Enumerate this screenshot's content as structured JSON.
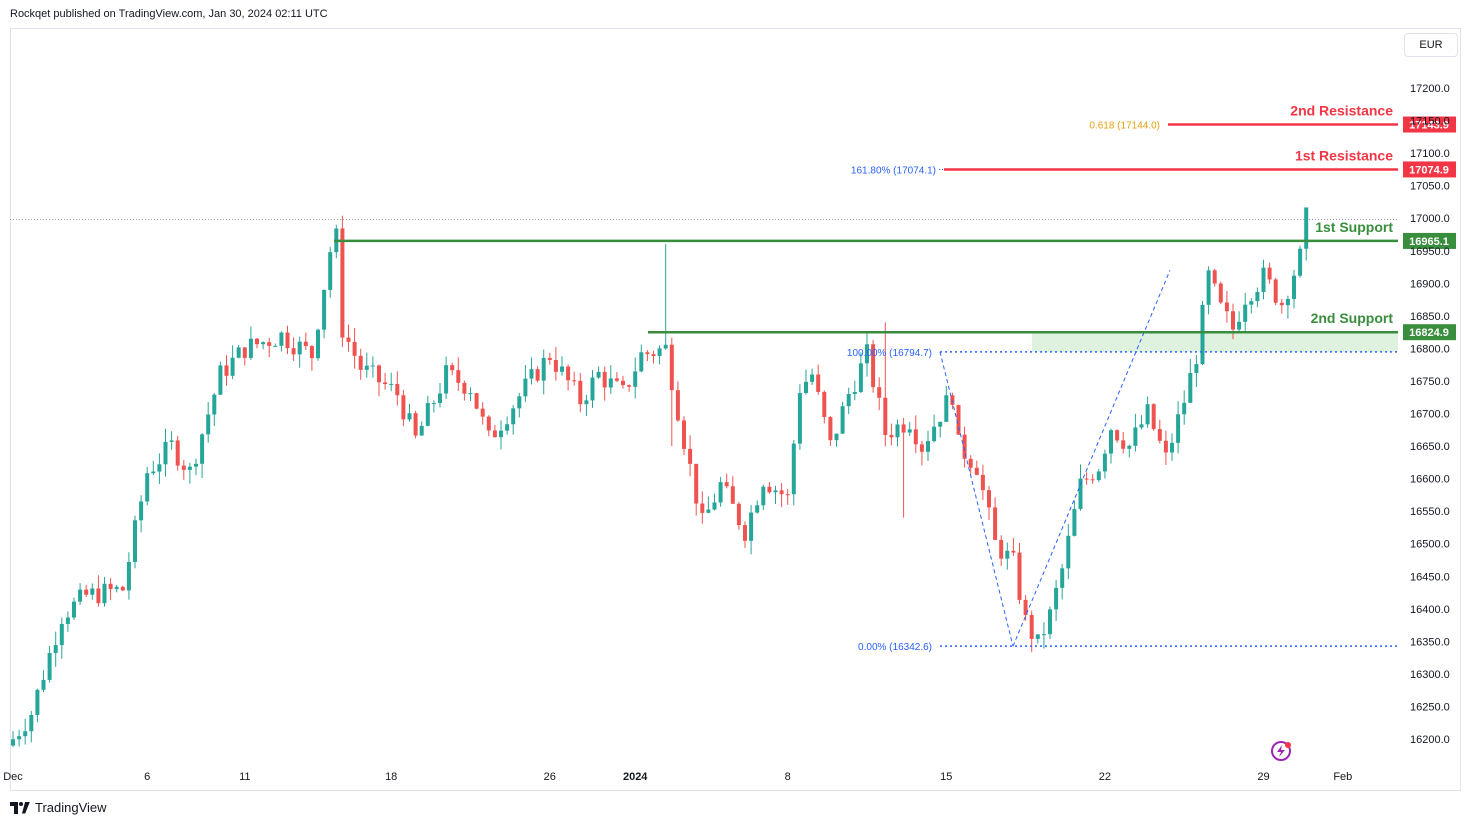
{
  "header": {
    "publisher_line": "Rockqet published on TradingView.com, Jan 30, 2024 02:11 UTC"
  },
  "currency": "EUR",
  "footer": {
    "brand": "TradingView",
    "logo_icon": "tradingview-logo-icon",
    "flash_icon": "lightning-icon"
  },
  "colors": {
    "up": "#26a69a",
    "down": "#ef5350",
    "support": "#388e3c",
    "resistance": "#f23645",
    "fib": "#2962ff",
    "gold": "#e5a00d"
  },
  "chart_data": {
    "type": "candlestick",
    "title": "",
    "ylim": [
      16160,
      17240
    ],
    "y_ticks": [
      "17200.0",
      "17150.0",
      "17100.0",
      "17050.0",
      "17000.0",
      "16950.0",
      "16900.0",
      "16850.0",
      "16800.0",
      "16750.0",
      "16700.0",
      "16650.0",
      "16600.0",
      "16550.0",
      "16500.0",
      "16450.0",
      "16400.0",
      "16350.0",
      "16300.0",
      "16250.0",
      "16200.0"
    ],
    "x_ticks": [
      {
        "label": "Dec",
        "bar": 0,
        "bold": false
      },
      {
        "label": "6",
        "bar": 22,
        "bold": false
      },
      {
        "label": "11",
        "bar": 38,
        "bold": false
      },
      {
        "label": "18",
        "bar": 62,
        "bold": false
      },
      {
        "label": "26",
        "bar": 88,
        "bold": false
      },
      {
        "label": "2024",
        "bar": 102,
        "bold": true
      },
      {
        "label": "8",
        "bar": 127,
        "bold": false
      },
      {
        "label": "15",
        "bar": 153,
        "bold": false
      },
      {
        "label": "22",
        "bar": 179,
        "bold": false
      },
      {
        "label": "29",
        "bar": 205,
        "bold": false
      },
      {
        "label": "Feb",
        "bar": 218,
        "bold": false
      }
    ],
    "bars_total": 229,
    "levels": [
      {
        "name": "2nd Resistance",
        "value": 17143.9,
        "label": "17143.9",
        "kind": "resistance",
        "fib": "0.618 (17144.0)"
      },
      {
        "name": "1st Resistance",
        "value": 17074.9,
        "label": "17074.9",
        "kind": "resistance",
        "fib": "161.80% (17074.1)"
      },
      {
        "name": "1st Support",
        "value": 16965.1,
        "label": "16965.1",
        "kind": "support"
      },
      {
        "name": "2nd Support",
        "value": 16824.9,
        "label": "16824.9",
        "kind": "support"
      }
    ],
    "fib_labels": {
      "top": "100.00% (16794.7)",
      "bottom": "0.00% (16342.6)"
    },
    "fib_values": {
      "top": 16794.7,
      "bottom": 16342.6
    },
    "last_price": 16998,
    "anchors": [
      [
        0,
        16200
      ],
      [
        3,
        16240
      ],
      [
        8,
        16390
      ],
      [
        12,
        16420
      ],
      [
        18,
        16430
      ],
      [
        22,
        16610
      ],
      [
        26,
        16650
      ],
      [
        29,
        16610
      ],
      [
        34,
        16760
      ],
      [
        38,
        16800
      ],
      [
        44,
        16820
      ],
      [
        49,
        16790
      ],
      [
        52,
        16950
      ],
      [
        53,
        16970
      ],
      [
        54,
        16830
      ],
      [
        57,
        16770
      ],
      [
        63,
        16730
      ],
      [
        66,
        16660
      ],
      [
        71,
        16760
      ],
      [
        75,
        16740
      ],
      [
        78,
        16660
      ],
      [
        84,
        16740
      ],
      [
        88,
        16790
      ],
      [
        93,
        16720
      ],
      [
        96,
        16760
      ],
      [
        100,
        16730
      ],
      [
        103,
        16790
      ],
      [
        107,
        16800
      ],
      [
        110,
        16660
      ],
      [
        113,
        16530
      ],
      [
        116,
        16590
      ],
      [
        120,
        16520
      ],
      [
        123,
        16600
      ],
      [
        127,
        16570
      ],
      [
        129,
        16740
      ],
      [
        131,
        16760
      ],
      [
        134,
        16650
      ],
      [
        137,
        16730
      ],
      [
        140,
        16790
      ],
      [
        143,
        16670
      ],
      [
        147,
        16690
      ],
      [
        149,
        16650
      ],
      [
        152,
        16700
      ],
      [
        154,
        16730
      ],
      [
        155,
        16650
      ],
      [
        158,
        16620
      ],
      [
        161,
        16500
      ],
      [
        164,
        16470
      ],
      [
        166,
        16380
      ],
      [
        168,
        16345
      ],
      [
        170,
        16390
      ],
      [
        172,
        16460
      ],
      [
        175,
        16590
      ],
      [
        178,
        16620
      ],
      [
        180,
        16680
      ],
      [
        183,
        16650
      ],
      [
        186,
        16700
      ],
      [
        189,
        16630
      ],
      [
        192,
        16720
      ],
      [
        194,
        16790
      ],
      [
        196,
        16910
      ],
      [
        198,
        16860
      ],
      [
        200,
        16830
      ],
      [
        202,
        16880
      ],
      [
        205,
        16910
      ],
      [
        208,
        16870
      ],
      [
        211,
        16940
      ],
      [
        212,
        17000
      ]
    ]
  }
}
